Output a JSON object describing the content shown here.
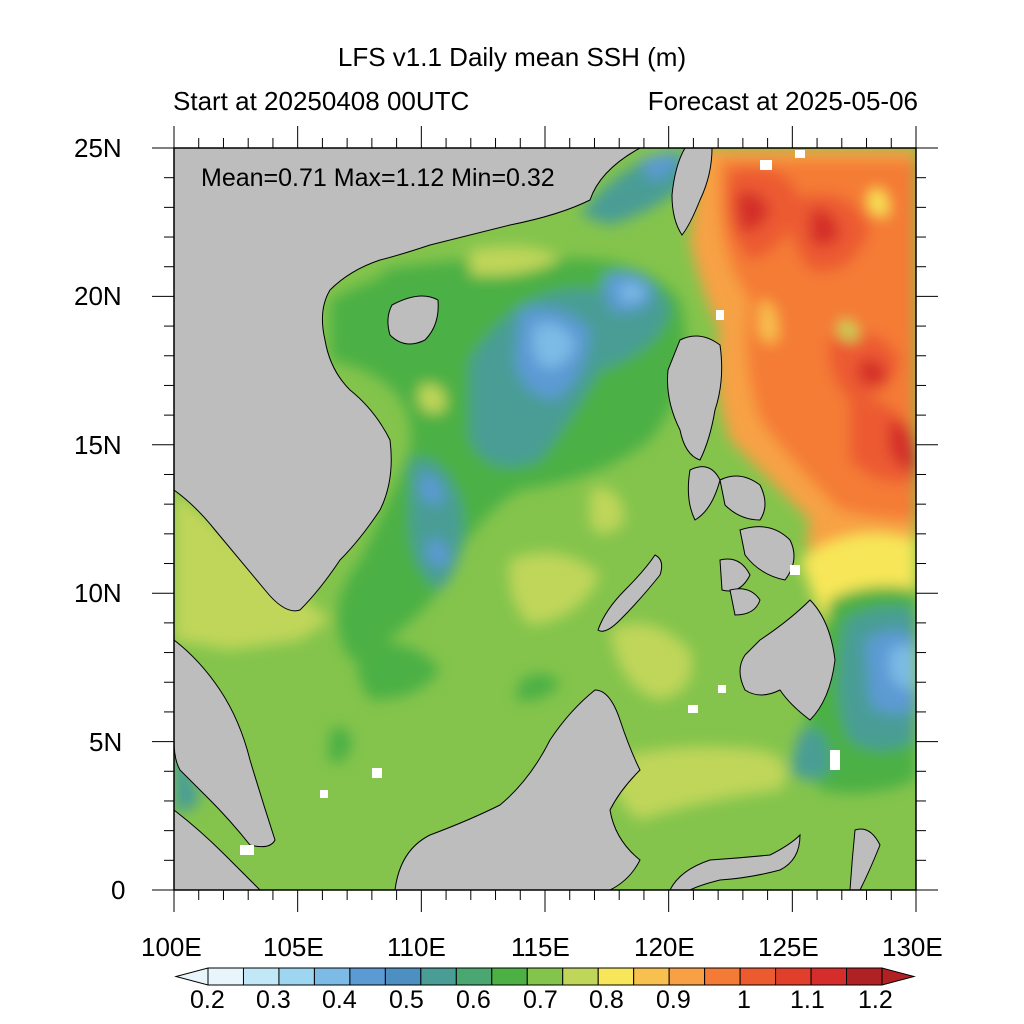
{
  "title": "LFS v1.1 Daily mean SSH (m)",
  "subtitle_left": "Start at 20250408 00UTC",
  "subtitle_right": "Forecast at 2025-05-06",
  "stats": "Mean=0.71  Max=1.12  Min=0.32",
  "lat_labels": [
    "25N",
    "20N",
    "15N",
    "10N",
    "5N",
    "0"
  ],
  "lon_labels": [
    "100E",
    "105E",
    "110E",
    "115E",
    "120E",
    "125E",
    "130E"
  ],
  "colorbar": {
    "labels": [
      "0.2",
      "0.3",
      "0.4",
      "0.5",
      "0.6",
      "0.7",
      "0.8",
      "0.9",
      "1",
      "1.1",
      "1.2"
    ],
    "colors": [
      "#e8f6fb",
      "#c2e8f7",
      "#9ed6f2",
      "#7bbbe6",
      "#5c9ad4",
      "#4d8fc1",
      "#4a9d95",
      "#4aa771",
      "#4cb044",
      "#84c44c",
      "#bfd65a",
      "#f7e659",
      "#f8c04f",
      "#f7a144",
      "#f47b35",
      "#ec5a30",
      "#e0402b",
      "#d42d2b",
      "#b02124"
    ]
  },
  "colors": {
    "land": "#bdbdbd",
    "missing": "#ffffff"
  }
}
